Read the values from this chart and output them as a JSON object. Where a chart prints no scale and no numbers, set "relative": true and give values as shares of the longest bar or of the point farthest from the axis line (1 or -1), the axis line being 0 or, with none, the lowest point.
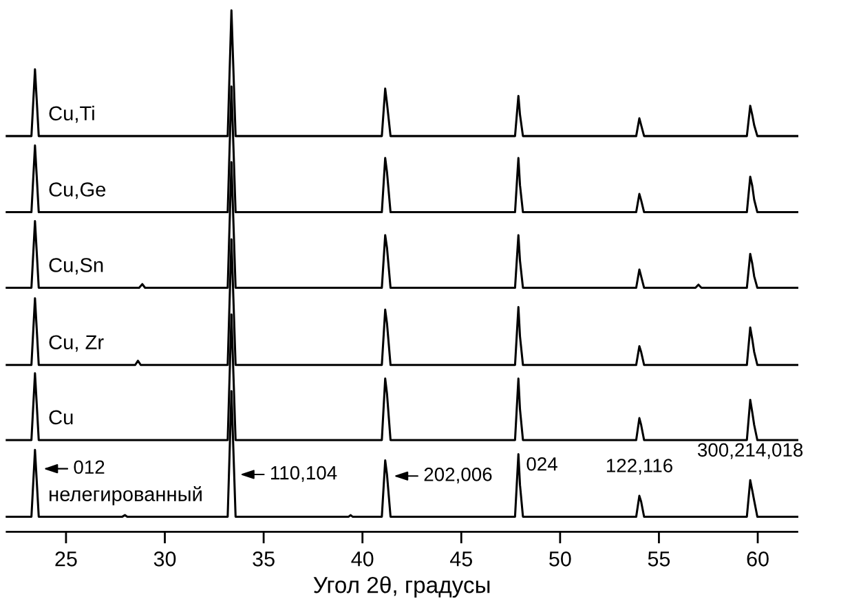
{
  "chart_data": {
    "type": "line",
    "relative": true,
    "xlabel": "Угол 2θ, градусы",
    "xlim": [
      22,
      62
    ],
    "xticks": [
      25,
      30,
      35,
      40,
      45,
      50,
      55,
      60
    ],
    "tick_labels": "x",
    "grid": false,
    "marker": "none",
    "line_style": "solid",
    "series": [
      {
        "name": "нелегированный",
        "color": "#000000",
        "x": [
          22,
          23.25,
          23.43,
          23.62,
          27.85,
          27.98,
          28.1,
          33.18,
          33.37,
          33.58,
          39.3,
          39.4,
          39.5,
          40.98,
          41.15,
          41.24,
          41.42,
          47.72,
          47.89,
          47.97,
          48.12,
          53.85,
          54.01,
          54.1,
          54.25,
          59.45,
          59.62,
          59.72,
          59.82,
          59.98,
          62
        ],
        "values": [
          0.029,
          0.029,
          0.157,
          0.029,
          0.029,
          0.032,
          0.029,
          0.029,
          0.27,
          0.029,
          0.029,
          0.032,
          0.029,
          0.029,
          0.137,
          0.11,
          0.029,
          0.029,
          0.149,
          0.09,
          0.029,
          0.029,
          0.069,
          0.058,
          0.029,
          0.029,
          0.099,
          0.08,
          0.06,
          0.029,
          0.029
        ]
      },
      {
        "name": "Cu",
        "color": "#000000",
        "x": [
          22,
          23.25,
          23.43,
          23.62,
          33.18,
          33.37,
          33.58,
          40.98,
          41.15,
          41.24,
          41.42,
          47.72,
          47.89,
          47.97,
          48.12,
          53.85,
          54.01,
          54.1,
          54.25,
          59.45,
          59.62,
          59.72,
          59.82,
          59.98,
          62
        ],
        "values": [
          0.176,
          0.176,
          0.304,
          0.176,
          0.176,
          0.417,
          0.176,
          0.176,
          0.294,
          0.265,
          0.176,
          0.176,
          0.294,
          0.235,
          0.176,
          0.176,
          0.218,
          0.205,
          0.176,
          0.176,
          0.253,
          0.23,
          0.205,
          0.176,
          0.176
        ]
      },
      {
        "name": "Cu, Zr",
        "color": "#000000",
        "x": [
          22,
          23.25,
          23.43,
          23.62,
          28.5,
          28.64,
          28.78,
          33.18,
          33.37,
          33.58,
          40.98,
          41.15,
          41.24,
          41.42,
          47.72,
          47.89,
          47.97,
          48.12,
          53.85,
          54.01,
          54.1,
          54.25,
          59.45,
          59.62,
          59.72,
          59.82,
          59.98,
          62
        ],
        "values": [
          0.32,
          0.32,
          0.448,
          0.32,
          0.32,
          0.328,
          0.32,
          0.32,
          0.561,
          0.32,
          0.32,
          0.426,
          0.4,
          0.32,
          0.32,
          0.431,
          0.375,
          0.32,
          0.32,
          0.356,
          0.345,
          0.32,
          0.32,
          0.392,
          0.37,
          0.345,
          0.32,
          0.32
        ]
      },
      {
        "name": "Cu,Sn",
        "color": "#000000",
        "x": [
          22,
          23.25,
          23.43,
          23.62,
          28.7,
          28.86,
          29.0,
          33.18,
          33.37,
          33.58,
          40.98,
          41.15,
          41.24,
          41.42,
          47.72,
          47.89,
          47.97,
          48.12,
          53.85,
          54.01,
          54.1,
          54.25,
          56.85,
          57.0,
          57.15,
          59.45,
          59.62,
          59.72,
          59.82,
          59.98,
          62
        ],
        "values": [
          0.468,
          0.468,
          0.596,
          0.468,
          0.468,
          0.475,
          0.468,
          0.468,
          0.709,
          0.468,
          0.468,
          0.569,
          0.545,
          0.468,
          0.468,
          0.569,
          0.52,
          0.468,
          0.468,
          0.503,
          0.49,
          0.468,
          0.468,
          0.474,
          0.468,
          0.468,
          0.533,
          0.515,
          0.49,
          0.468,
          0.468
        ]
      },
      {
        "name": "Cu,Ge",
        "color": "#000000",
        "x": [
          22,
          23.25,
          23.43,
          23.62,
          33.18,
          33.37,
          33.58,
          40.98,
          41.15,
          41.24,
          41.42,
          47.72,
          47.89,
          47.97,
          48.12,
          53.85,
          54.01,
          54.1,
          54.25,
          59.45,
          59.62,
          59.72,
          59.82,
          59.98,
          62
        ],
        "values": [
          0.613,
          0.613,
          0.741,
          0.613,
          0.613,
          0.854,
          0.613,
          0.613,
          0.717,
          0.69,
          0.613,
          0.613,
          0.717,
          0.665,
          0.613,
          0.613,
          0.648,
          0.636,
          0.613,
          0.613,
          0.681,
          0.664,
          0.637,
          0.613,
          0.613
        ]
      },
      {
        "name": "Cu,Ti",
        "color": "#000000",
        "x": [
          22,
          23.25,
          23.43,
          23.62,
          33.18,
          33.37,
          33.58,
          40.98,
          41.15,
          41.24,
          41.42,
          47.72,
          47.89,
          47.97,
          48.12,
          53.85,
          54.01,
          54.1,
          54.25,
          59.45,
          59.62,
          59.72,
          59.82,
          59.98,
          62
        ],
        "values": [
          0.759,
          0.759,
          0.887,
          0.759,
          0.759,
          1.0,
          0.759,
          0.759,
          0.85,
          0.822,
          0.759,
          0.759,
          0.836,
          0.8,
          0.759,
          0.759,
          0.793,
          0.78,
          0.759,
          0.759,
          0.817,
          0.8,
          0.78,
          0.759,
          0.759
        ]
      }
    ],
    "annotations": [
      {
        "text": "012",
        "x": 23.43,
        "y": 0.121
      },
      {
        "text": "110,104",
        "x": 33.37,
        "y": 0.11
      },
      {
        "text": "202,006",
        "x": 41.15,
        "y": 0.107
      },
      {
        "text": "024",
        "x": 47.89,
        "y": 0.149
      },
      {
        "text": "122,116",
        "x": 54.01,
        "y": 0.069
      },
      {
        "text": "300,214,018",
        "x": 59.62,
        "y": 0.099
      }
    ]
  }
}
